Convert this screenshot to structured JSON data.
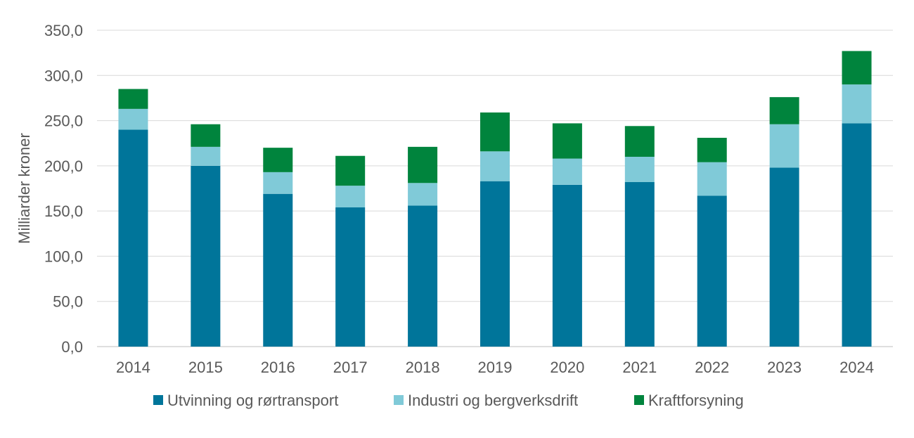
{
  "chart_data": {
    "type": "bar",
    "stacked": true,
    "ylabel": "Milliarder kroner",
    "ylim": [
      0,
      350
    ],
    "ytick_step": 50,
    "ytick_labels": [
      "0,0",
      "50,0",
      "100,0",
      "150,0",
      "200,0",
      "250,0",
      "300,0",
      "350,0"
    ],
    "grid": "horizontal",
    "legend_position": "bottom",
    "categories": [
      "2014",
      "2015",
      "2016",
      "2017",
      "2018",
      "2019",
      "2020",
      "2021",
      "2022",
      "2023",
      "2024"
    ],
    "series": [
      {
        "name": "Utvinning og rørtransport",
        "color": "#00759A",
        "values": [
          240,
          200,
          169,
          154,
          156,
          183,
          179,
          182,
          167,
          198,
          247
        ]
      },
      {
        "name": "Industri og bergverksdrift",
        "color": "#80CAD8",
        "values": [
          23,
          21,
          24,
          24,
          25,
          33,
          29,
          28,
          37,
          48,
          43
        ]
      },
      {
        "name": "Kraftforsyning",
        "color": "#00843D",
        "values": [
          22,
          25,
          27,
          33,
          40,
          43,
          39,
          34,
          27,
          30,
          37
        ]
      }
    ]
  }
}
